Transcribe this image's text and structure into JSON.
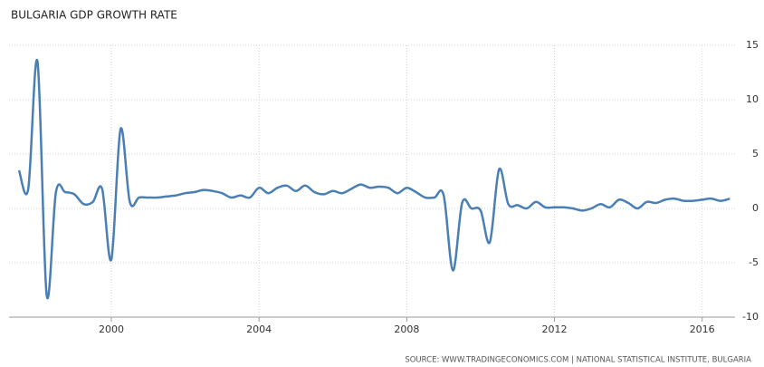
{
  "chart_data": {
    "type": "line",
    "title": "BULGARIA GDP GROWTH RATE",
    "source": "SOURCE: WWW.TRADINGECONOMICS.COM | NATIONAL STATISTICAL INSTITUTE, BULGARIA",
    "x": [
      1997.5,
      1997.75,
      1998,
      1998.25,
      1998.5,
      1998.75,
      1999,
      1999.25,
      1999.5,
      1999.75,
      2000,
      2000.25,
      2000.5,
      2000.75,
      2001,
      2001.25,
      2001.5,
      2001.75,
      2002,
      2002.25,
      2002.5,
      2002.75,
      2003,
      2003.25,
      2003.5,
      2003.75,
      2004,
      2004.25,
      2004.5,
      2004.75,
      2005,
      2005.25,
      2005.5,
      2005.75,
      2006,
      2006.25,
      2006.5,
      2006.75,
      2007,
      2007.25,
      2007.5,
      2007.75,
      2008,
      2008.25,
      2008.5,
      2008.75,
      2009,
      2009.25,
      2009.5,
      2009.75,
      2010,
      2010.25,
      2010.5,
      2010.75,
      2011,
      2011.25,
      2011.5,
      2011.75,
      2012,
      2012.25,
      2012.5,
      2012.75,
      2013,
      2013.25,
      2013.5,
      2013.75,
      2014,
      2014.25,
      2014.5,
      2014.75,
      2015,
      2015.25,
      2015.5,
      2015.75,
      2016,
      2016.25,
      2016.5,
      2016.75
    ],
    "series": [
      {
        "name": "GDP growth rate",
        "color": "#4a7fb5",
        "values": [
          3.5,
          1.8,
          13.5,
          -8,
          1.5,
          1.5,
          1.3,
          0.4,
          0.6,
          1.8,
          -4.7,
          7.3,
          0.6,
          1.0,
          1.0,
          1.0,
          1.1,
          1.2,
          1.4,
          1.5,
          1.7,
          1.6,
          1.4,
          1.0,
          1.2,
          1.0,
          1.9,
          1.4,
          1.9,
          2.1,
          1.6,
          2.1,
          1.5,
          1.3,
          1.6,
          1.4,
          1.8,
          2.2,
          1.9,
          2.0,
          1.9,
          1.4,
          1.9,
          1.5,
          1.0,
          1.0,
          1.2,
          -5.7,
          0.5,
          0.0,
          -0.2,
          -3.1,
          3.6,
          0.4,
          0.3,
          0.0,
          0.6,
          0.1,
          0.1,
          0.1,
          0.0,
          -0.2,
          0.0,
          0.4,
          0.1,
          0.8,
          0.5,
          0.0,
          0.6,
          0.5,
          0.8,
          0.9,
          0.7,
          0.7,
          0.8,
          0.9,
          0.7,
          0.9
        ]
      }
    ],
    "xlim": [
      1997.23,
      2016.89
    ],
    "xticks": [
      2000,
      2004,
      2008,
      2012,
      2016
    ],
    "ylim": [
      -10,
      15
    ],
    "yticks": [
      15,
      10,
      5,
      0,
      -5,
      -10
    ],
    "grid": true
  }
}
